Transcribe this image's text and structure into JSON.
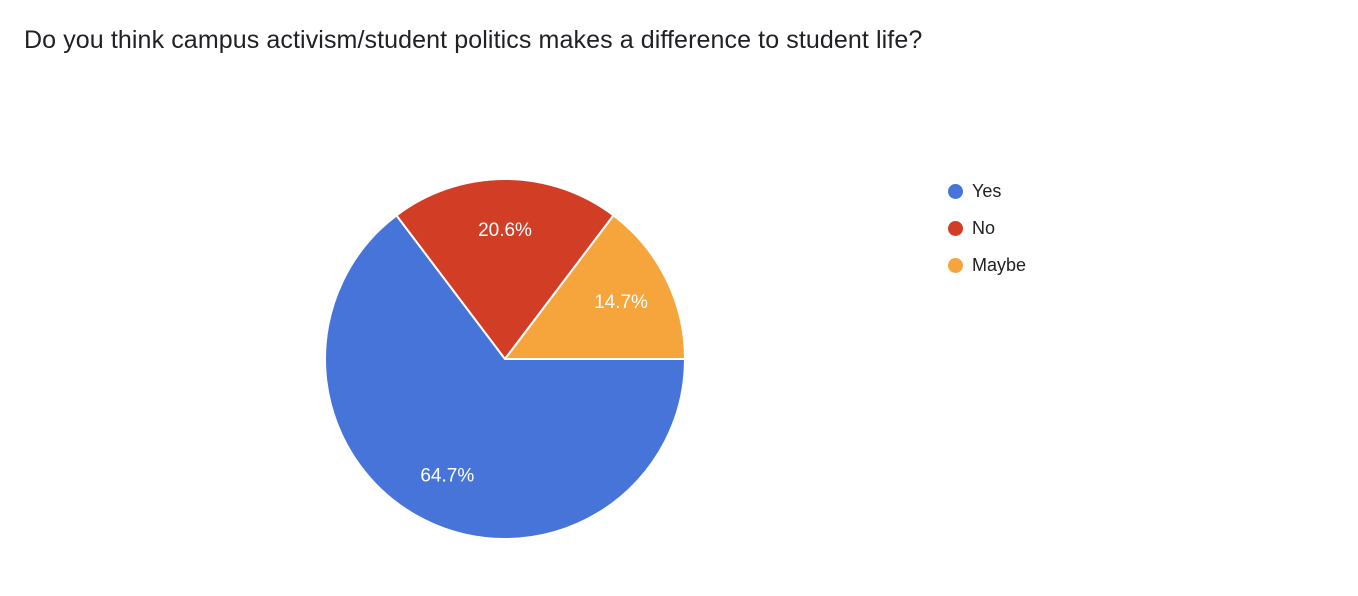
{
  "chart_data": {
    "type": "pie",
    "title": "Do you think campus activism/student politics makes a difference to student life?",
    "legend_position": "right",
    "start_angle_deg": 0,
    "direction": "clockwise",
    "background": "#ffffff",
    "slice_label_color": "#ffffff",
    "slices": [
      {
        "label": "Yes",
        "value_pct": 64.7,
        "display": "64.7%",
        "color": "#4674D9"
      },
      {
        "label": "No",
        "value_pct": 20.6,
        "display": "20.6%",
        "color": "#D23E25"
      },
      {
        "label": "Maybe",
        "value_pct": 14.7,
        "display": "14.7%",
        "color": "#F5A53C"
      }
    ]
  }
}
